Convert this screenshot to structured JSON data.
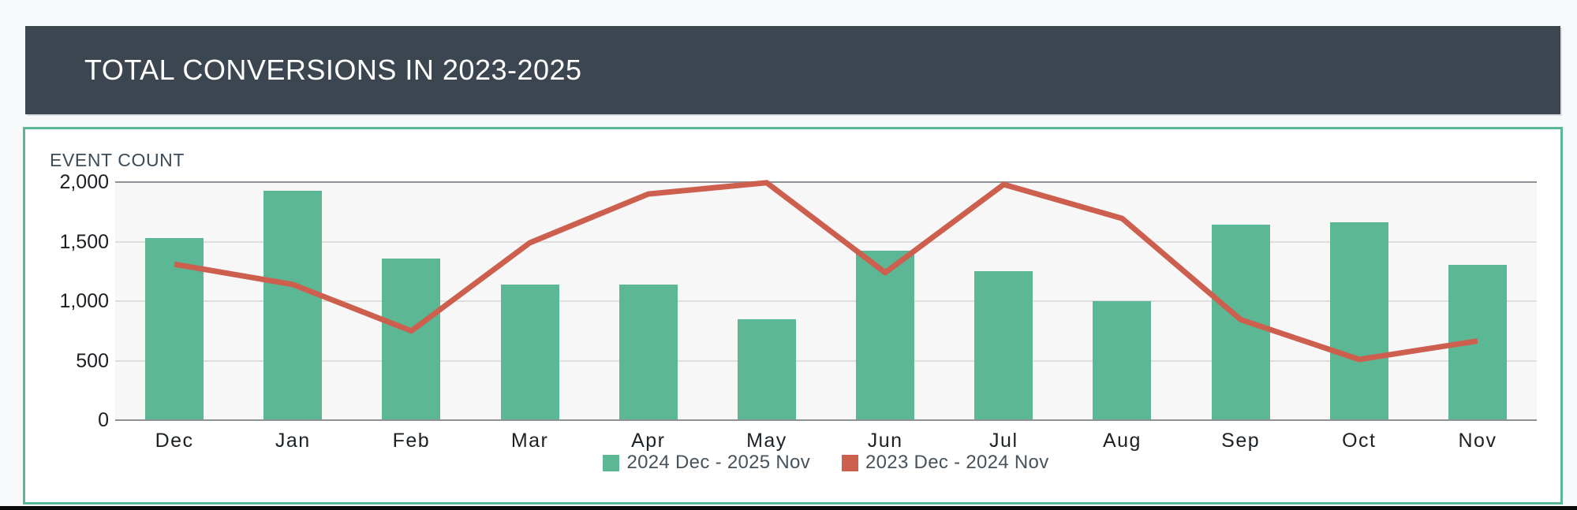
{
  "page": {
    "background": "#f8f9fa",
    "bottom_bar_color": "#0a0a0b"
  },
  "header": {
    "title": "TOTAL CONVERSIONS IN 2023-2025",
    "background": "#3c4650",
    "text_color": "#ffffff"
  },
  "chart_panel": {
    "axis_title": "EVENT COUNT",
    "border_color": "#5cb795",
    "background": "#ffffff",
    "plot_background": "#f7f7f8",
    "grid_color": "#dedede",
    "grid_color_strong": "#8d9196",
    "axis_title_color": "#3d4b57",
    "tick_text_color": "#1b1f23",
    "month_text_color": "#1c2125",
    "legend_text_color": "#46525c"
  },
  "chart_data": {
    "type": "combo",
    "title": "TOTAL CONVERSIONS IN 2023-2025",
    "ylabel": "EVENT COUNT",
    "xlabel": "",
    "categories": [
      "Dec",
      "Jan",
      "Feb",
      "Mar",
      "Apr",
      "May",
      "Jun",
      "Jul",
      "Aug",
      "Sep",
      "Oct",
      "Nov"
    ],
    "series": [
      {
        "name": "2024 Dec - 2025 Nov",
        "type": "bar",
        "color": "#5cb795",
        "values": [
          1530,
          1930,
          1360,
          1140,
          1140,
          850,
          1425,
          1250,
          1000,
          1645,
          1665,
          1305
        ]
      },
      {
        "name": "2023 Dec - 2024 Nov",
        "type": "line",
        "color": "#cd5f4e",
        "values": [
          1310,
          1140,
          750,
          1490,
          1900,
          1995,
          1240,
          1980,
          1695,
          845,
          510,
          665
        ]
      }
    ],
    "ylim": [
      0,
      2000
    ],
    "yticks": [
      {
        "value": 2000,
        "label": "2,000"
      },
      {
        "value": 1500,
        "label": "1,500"
      },
      {
        "value": 1000,
        "label": "1,000"
      },
      {
        "value": 500,
        "label": "500"
      },
      {
        "value": 0,
        "label": "0"
      }
    ],
    "grid": true,
    "legend_position": "bottom"
  }
}
